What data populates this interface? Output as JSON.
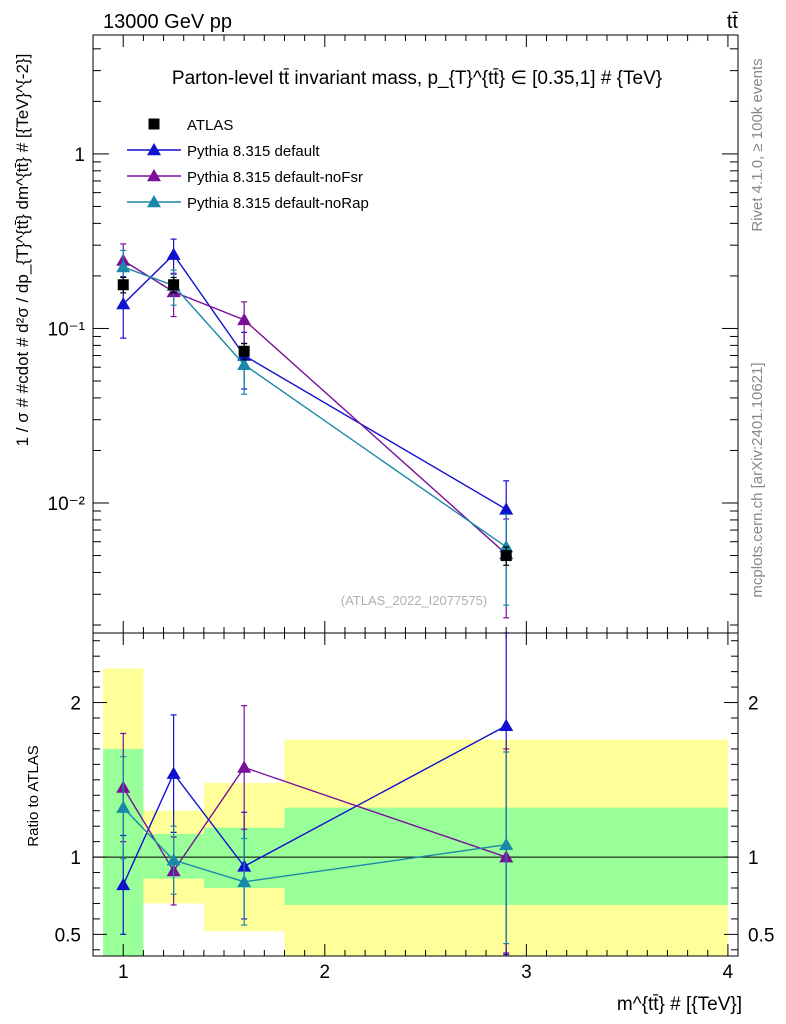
{
  "header": {
    "left": "13000 GeV pp",
    "right": "tt̄"
  },
  "side_labels": {
    "rivet": "Rivet 4.1.0, ≥ 100k events",
    "mcplots": "mcplots.cern.ch [arXiv:2401.10621]"
  },
  "colors": {
    "ATLAS": "#000000",
    "default": "#1010d0",
    "noFsr": "#7a109a",
    "noRap": "#1a88a8",
    "band_inner": "#99ff99",
    "band_outer": "#ffff99"
  },
  "chart_data": [
    {
      "type": "line",
      "panel": "main",
      "title": "Parton-level tt̄ invariant mass, p_{T}^{tt̄} ∈ [0.35,1] # {TeV}",
      "watermark": "(ATLAS_2022_I2077575)",
      "ylabel": "1 / σ # #cdot # d²σ / dp_{T}^{tt̄} dm^{tt̄} # [{TeV}^{-2}]",
      "yscale": "log",
      "xlim": [
        0.85,
        4.05
      ],
      "ylim": [
        0.0018,
        4.8
      ],
      "y_ticks": [
        {
          "value": 1,
          "label": "1"
        },
        {
          "value": 0.1,
          "label": "10⁻¹"
        },
        {
          "value": 0.01,
          "label": "10⁻²"
        }
      ],
      "legend": {
        "placement": "top-left",
        "entries": [
          "ATLAS",
          "Pythia 8.315 default",
          "Pythia 8.315 default-noFsr",
          "Pythia 8.315 default-noRap"
        ]
      },
      "x": [
        1.0,
        1.25,
        1.6,
        2.9
      ],
      "series": [
        {
          "name": "ATLAS",
          "marker": "square",
          "values": [
            0.178,
            0.178,
            0.074,
            0.005
          ],
          "err_lo": [
            0.018,
            0.018,
            0.008,
            0.0006
          ],
          "err_hi": [
            0.018,
            0.018,
            0.008,
            0.0006
          ]
        },
        {
          "name": "Pythia 8.315 default",
          "marker": "triangle",
          "values": [
            0.138,
            0.265,
            0.07,
            0.0092
          ],
          "err_lo": [
            0.05,
            0.06,
            0.025,
            0.0042
          ],
          "err_hi": [
            0.06,
            0.06,
            0.025,
            0.0042
          ]
        },
        {
          "name": "Pythia 8.315 default-noFsr",
          "marker": "triangle",
          "values": [
            0.245,
            0.162,
            0.112,
            0.0051
          ],
          "err_lo": [
            0.06,
            0.045,
            0.03,
            0.0029
          ],
          "err_hi": [
            0.06,
            0.045,
            0.03,
            0.003
          ]
        },
        {
          "name": "Pythia 8.315 default-noRap",
          "marker": "triangle",
          "values": [
            0.225,
            0.176,
            0.062,
            0.0056
          ],
          "err_lo": [
            0.055,
            0.04,
            0.02,
            0.003
          ],
          "err_hi": [
            0.055,
            0.04,
            0.02,
            0.003
          ]
        }
      ]
    },
    {
      "type": "line",
      "panel": "ratio",
      "ylabel": "Ratio to ATLAS",
      "xlabel": "m^{tt̄} # [{TeV}]",
      "xlim": [
        0.85,
        4.05
      ],
      "ylim": [
        0.36,
        2.45
      ],
      "y_ticks": [
        {
          "value": 0.5,
          "label": "0.5"
        },
        {
          "value": 1,
          "label": "1"
        },
        {
          "value": 2,
          "label": "2"
        }
      ],
      "x_ticks": [
        {
          "value": 1,
          "label": "1"
        },
        {
          "value": 2,
          "label": "2"
        },
        {
          "value": 3,
          "label": "3"
        },
        {
          "value": 4,
          "label": "4"
        }
      ],
      "bins": [
        {
          "lo": 0.9,
          "hi": 1.1,
          "inner": [
            0.36,
            1.7
          ],
          "outer": [
            0.36,
            2.22
          ]
        },
        {
          "lo": 1.1,
          "hi": 1.4,
          "inner": [
            0.86,
            1.15
          ],
          "outer": [
            0.7,
            1.3
          ]
        },
        {
          "lo": 1.4,
          "hi": 1.8,
          "inner": [
            0.8,
            1.19
          ],
          "outer": [
            0.52,
            1.48
          ]
        },
        {
          "lo": 1.8,
          "hi": 4.0,
          "inner": [
            0.69,
            1.32
          ],
          "outer": [
            0.36,
            1.76
          ]
        }
      ],
      "x": [
        1.0,
        1.25,
        1.6,
        2.9
      ],
      "series": [
        {
          "name": "Pythia 8.315 default",
          "values": [
            0.82,
            1.54,
            0.94,
            1.85
          ],
          "err_lo": [
            0.32,
            0.38,
            0.34,
            1.48
          ],
          "err_hi": [
            0.32,
            0.38,
            0.35,
            0.6
          ]
        },
        {
          "name": "Pythia 8.315 default-noFsr",
          "values": [
            1.45,
            0.91,
            1.58,
            1.0
          ],
          "err_lo": [
            0.35,
            0.22,
            0.4,
            0.62
          ],
          "err_hi": [
            0.35,
            0.22,
            0.4,
            0.7
          ]
        },
        {
          "name": "Pythia 8.315 default-noRap",
          "values": [
            1.32,
            0.98,
            0.84,
            1.08
          ],
          "err_lo": [
            0.33,
            0.22,
            0.28,
            0.64
          ],
          "err_hi": [
            0.33,
            0.22,
            0.28,
            0.6
          ]
        }
      ]
    }
  ]
}
